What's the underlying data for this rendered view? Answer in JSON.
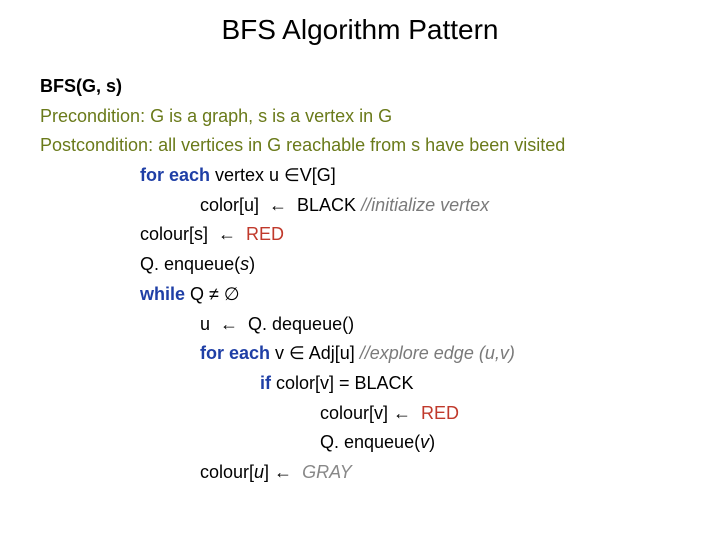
{
  "title": "BFS Algorithm Pattern",
  "colors": {
    "keyword": "#1f3fa6",
    "condition": "#6a7a1a",
    "comment": "#7a7a7a",
    "red": "#c0392b",
    "gray": "#888888",
    "text": "#000000",
    "background": "#ffffff"
  },
  "typography": {
    "title_fontsize": 28,
    "code_fontsize": 18,
    "line_height": 1.65,
    "font_family": "Arial"
  },
  "bfs": {
    "signature": "BFS(G, s)",
    "precondition_label": "Precondition: ",
    "precondition_text": "G is a graph, s is a vertex in G",
    "postcondition_label": "Postcondition: ",
    "postcondition_text": "all vertices in G reachable from s have been visited",
    "l1_kw": "for each ",
    "l1_rest": "vertex u ∈V[G]",
    "l2_a": "color[u]  ←  BLACK ",
    "l2_com": "//initialize vertex",
    "l3_a": "colour[s]  ←  ",
    "l3_red": "RED",
    "l4": "Q. enqueue(",
    "l4_s": "s",
    "l4_end": ")",
    "l5_kw": "while ",
    "l5_rest": "Q ≠ ∅",
    "l6_a": "u  ←  Q. dequeue()",
    "l7_kw": "for each ",
    "l7_rest": "v ∈ Adj[u] ",
    "l7_com": "//explore edge (",
    "l7_u": "u",
    "l7_mid": ",",
    "l7_v": "v",
    "l7_end": ")",
    "l8_kw": "if ",
    "l8_rest": "color[v] = BLACK",
    "l9_a": "colour[v] ←  ",
    "l9_red": "RED",
    "l10": "Q. enqueue(",
    "l10_v": "v",
    "l10_end": ")",
    "l11_a": "colour[",
    "l11_u": "u",
    "l11_b": "] ←  ",
    "l11_gray": "GRAY"
  }
}
